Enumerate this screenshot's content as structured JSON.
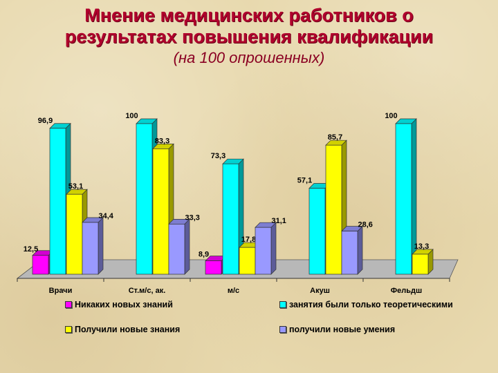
{
  "title_line1": "Мнение медицинских работников о",
  "title_line2": "результатах повышения квалификации",
  "subtitle": "(на 100 опрошенных)",
  "chart_data": {
    "type": "bar",
    "categories": [
      "Врачи",
      "Ст.м/с, ак.",
      "м/с",
      "Акуш",
      "Фельдш"
    ],
    "series": [
      {
        "name": "Никаких новых знаний",
        "color": "#ff00ff",
        "values": [
          12.5,
          null,
          8.9,
          null,
          null
        ],
        "labels": [
          "12,5",
          null,
          "8,9",
          null,
          null
        ]
      },
      {
        "name": "занятия были только теоретическими",
        "color": "#00ffff",
        "values": [
          96.9,
          100,
          73.3,
          57.1,
          100
        ],
        "labels": [
          "96,9",
          "100",
          "73,3",
          "57,1",
          "100"
        ]
      },
      {
        "name": "Получили новые знания",
        "color": "#ffff00",
        "values": [
          53.1,
          83.3,
          17.8,
          85.7,
          13.3
        ],
        "labels": [
          "53,1",
          "83,3",
          "17,8",
          "85,7",
          "13,3"
        ]
      },
      {
        "name": "получили новые умения",
        "color": "#9999ff",
        "values": [
          34.4,
          33.3,
          31.1,
          28.6,
          null
        ],
        "labels": [
          "34,4",
          "33,3",
          "31,1",
          "28,6",
          null
        ]
      }
    ],
    "ylim": [
      0,
      100
    ],
    "grid": false,
    "legend_position": "bottom"
  }
}
